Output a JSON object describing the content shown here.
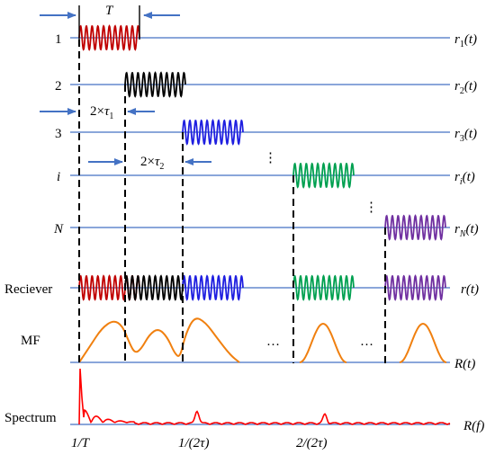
{
  "diagram": {
    "period_label": "T",
    "delay_labels": [
      {
        "prefix": "2×",
        "symbol": "τ",
        "sub": "1"
      },
      {
        "prefix": "2×",
        "symbol": "τ",
        "sub": "2"
      }
    ],
    "channels": [
      {
        "left": "1",
        "left_italic": false,
        "right": "r",
        "sub": "1",
        "arg": "(t)",
        "color": "#c00000"
      },
      {
        "left": "2",
        "left_italic": false,
        "right": "r",
        "sub": "2",
        "arg": "(t)",
        "color": "#000000"
      },
      {
        "left": "3",
        "left_italic": false,
        "right": "r",
        "sub": "3",
        "arg": "(t)",
        "color": "#1f1fe0"
      },
      {
        "left": "i",
        "left_italic": true,
        "right": "r",
        "sub": "i",
        "arg": "(t)",
        "color": "#00a050"
      },
      {
        "left": "N",
        "left_italic": true,
        "right": "r",
        "sub": "N",
        "arg": "(t)",
        "color": "#7030a0"
      }
    ],
    "receiver": {
      "left": "Reciever",
      "right": "r(t)"
    },
    "mf": {
      "left": "MF",
      "right": "R(t)",
      "color": "#f08010"
    },
    "spectrum": {
      "left": "Spectrum",
      "right": "R(f)",
      "color": "#ff0000",
      "tick_labels": [
        "1/T",
        "1/(2τ)",
        "2/(2τ)"
      ]
    },
    "ellipsis_vertical": "⋮",
    "ellipsis_horizontal": "…",
    "colors": {
      "axis": "#4472c4",
      "arrow": "#4472c4",
      "dash": "#000000"
    }
  }
}
